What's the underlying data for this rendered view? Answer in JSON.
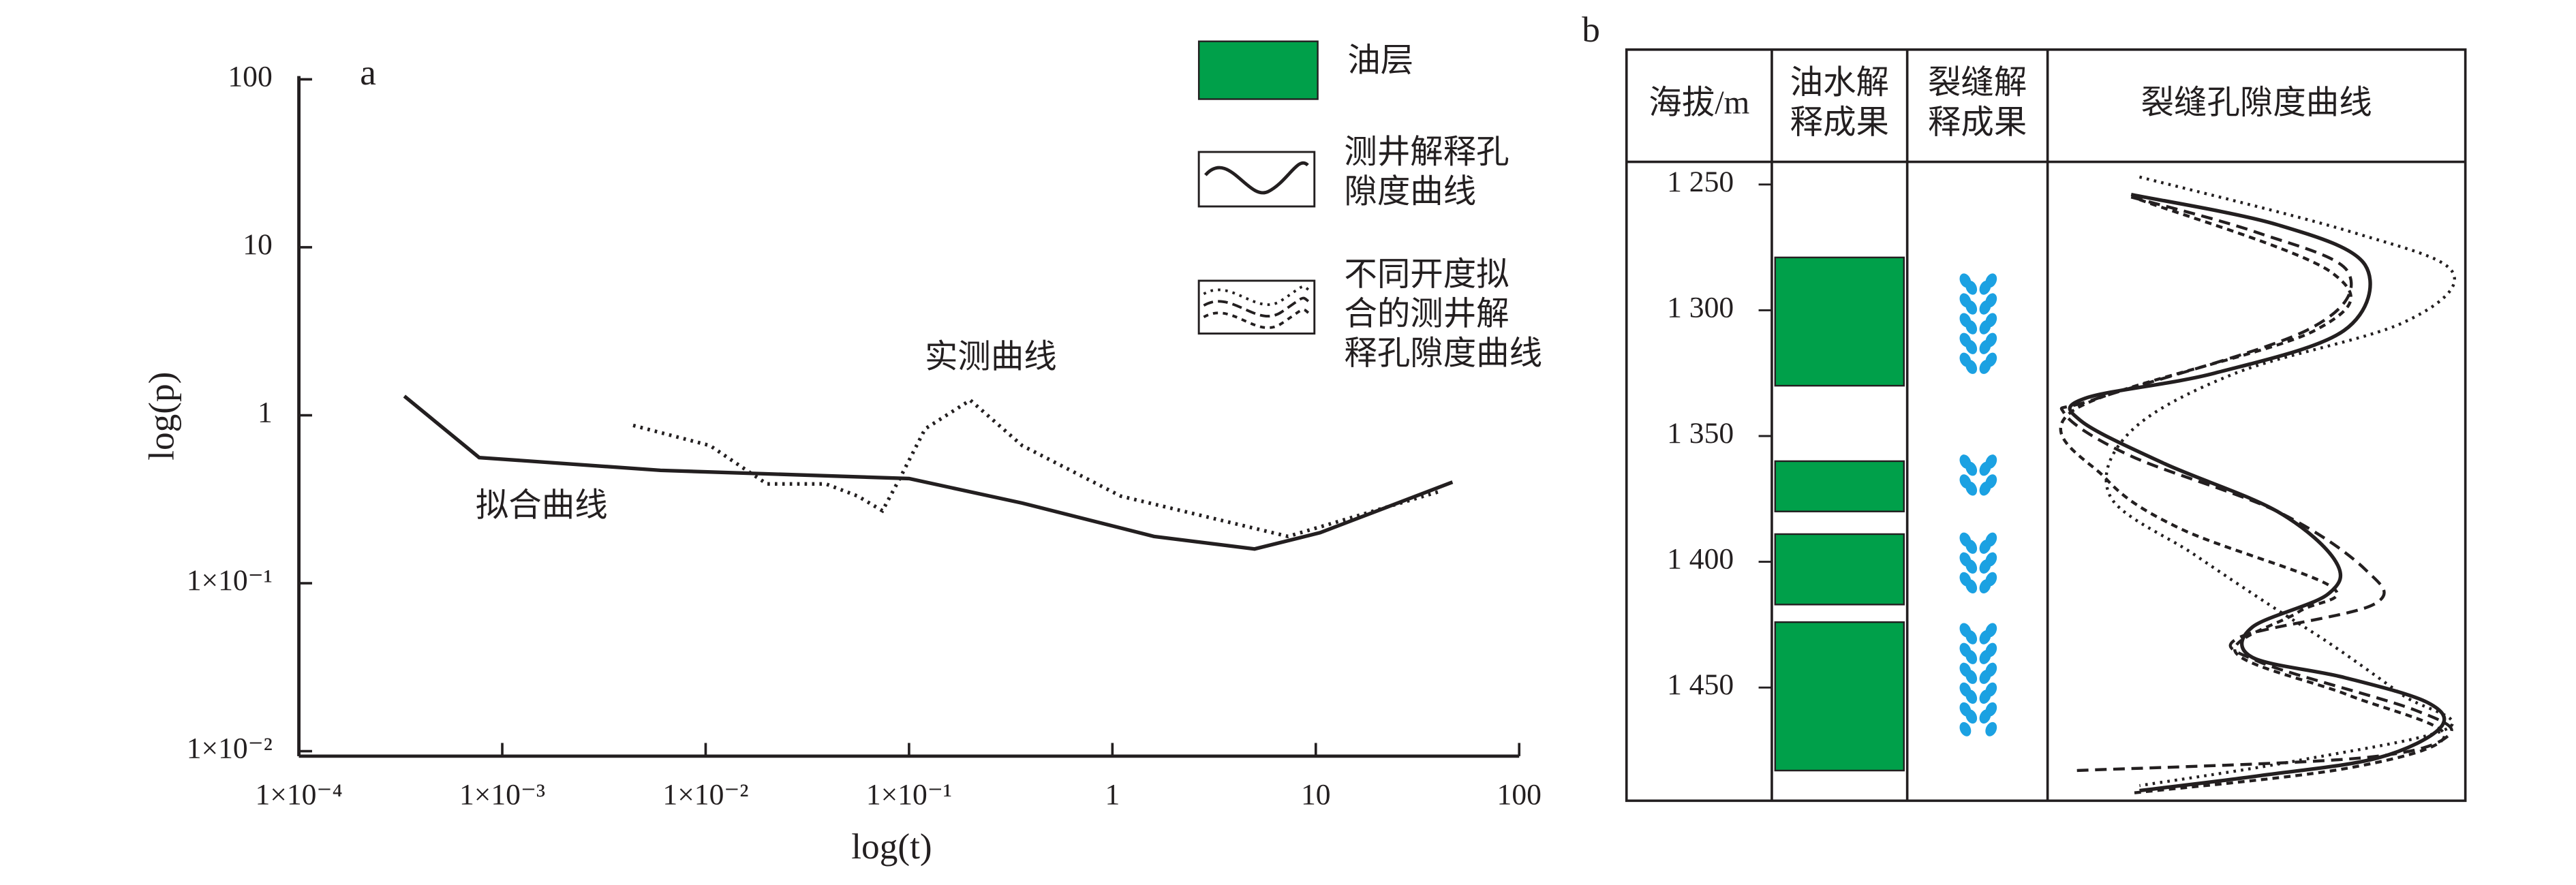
{
  "chart_data": [
    {
      "type": "line",
      "label": "a",
      "xlabel": "log(t)",
      "ylabel": "log(p)",
      "log_x": true,
      "log_y": true,
      "xlim": [
        0.0001,
        100
      ],
      "ylim": [
        0.01,
        100
      ],
      "xticks": [
        {
          "value": 0.0001,
          "label": "1×10⁻⁴"
        },
        {
          "value": 0.001,
          "label": "1×10⁻³"
        },
        {
          "value": 0.01,
          "label": "1×10⁻²"
        },
        {
          "value": 0.1,
          "label": "1×10⁻¹"
        },
        1,
        10,
        100
      ],
      "yticks": [
        {
          "value": 0.01,
          "label": "1×10⁻²"
        },
        {
          "value": 0.1,
          "label": "1×10⁻¹"
        },
        1,
        10,
        100
      ],
      "series": [
        {
          "name": "拟合曲线",
          "style": "solid",
          "color": "#231f20",
          "x": [
            0.00033,
            0.00077,
            0.006,
            0.1,
            0.36,
            1.6,
            5,
            10.5,
            47
          ],
          "values": [
            1.3,
            0.56,
            0.47,
            0.42,
            0.3,
            0.19,
            0.16,
            0.2,
            0.4
          ]
        },
        {
          "name": "实测曲线",
          "style": "dotted",
          "color": "#231f20",
          "x": [
            0.0044,
            0.0105,
            0.02,
            0.039,
            0.056,
            0.074,
            0.09,
            0.12,
            0.2,
            0.36,
            1.1,
            7.3,
            40
          ],
          "values": [
            0.87,
            0.66,
            0.39,
            0.39,
            0.33,
            0.27,
            0.42,
            0.83,
            1.23,
            0.66,
            0.33,
            0.19,
            0.35
          ]
        }
      ]
    },
    {
      "type": "well-log",
      "label": "b",
      "headers": [
        [
          "海拔/m"
        ],
        [
          "油水解",
          "释成果"
        ],
        [
          "裂缝解",
          "释成果"
        ],
        [
          "裂缝孔隙度曲线"
        ]
      ],
      "ylim": [
        1241,
        1495
      ],
      "yticks": [
        {
          "value": 1250,
          "label": "1 250"
        },
        {
          "value": 1300,
          "label": "1 300"
        },
        {
          "value": 1350,
          "label": "1 350"
        },
        {
          "value": 1400,
          "label": "1 400"
        },
        {
          "value": 1450,
          "label": "1 450"
        }
      ],
      "oil_color": "#00a04a",
      "oil_layers": [
        [
          1279,
          1330
        ],
        [
          1360,
          1380
        ],
        [
          1389,
          1417
        ],
        [
          1424,
          1483
        ]
      ],
      "fracture_color": "#1ba1e2",
      "fractures": [
        [
          1285,
          1326
        ],
        [
          1357,
          1377
        ],
        [
          1388,
          1413
        ],
        [
          1424,
          1470
        ]
      ],
      "xlim": [
        0,
        1
      ],
      "series": [
        {
          "style": "solid",
          "color": "#231f20",
          "depth": [
            1254,
            1266,
            1282,
            1308,
            1325,
            1335,
            1344,
            1361,
            1380,
            1400,
            1413,
            1426,
            1438,
            1446,
            1456,
            1466,
            1478,
            1485,
            1491
          ],
          "values": [
            0.2,
            0.55,
            0.76,
            0.71,
            0.4,
            0.09,
            0.08,
            0.28,
            0.55,
            0.69,
            0.67,
            0.49,
            0.49,
            0.71,
            0.91,
            0.94,
            0.79,
            0.51,
            0.22
          ]
        },
        {
          "style": "dashed",
          "color": "#231f20",
          "depth": [
            1255,
            1269,
            1285,
            1308,
            1335,
            1341,
            1358,
            1380,
            1403,
            1417,
            1430,
            1440,
            1459,
            1469,
            1478,
            1483
          ],
          "values": [
            0.2,
            0.5,
            0.72,
            0.62,
            0.12,
            0.04,
            0.2,
            0.55,
            0.76,
            0.78,
            0.46,
            0.51,
            0.88,
            0.96,
            0.75,
            0.07
          ]
        },
        {
          "style": "short-dashed",
          "color": "#231f20",
          "depth": [
            1256,
            1285,
            1308,
            1340,
            1367,
            1387,
            1410,
            1420,
            1436,
            1453,
            1469,
            1482,
            1492
          ],
          "values": [
            0.22,
            0.68,
            0.64,
            0.06,
            0.14,
            0.32,
            0.68,
            0.6,
            0.45,
            0.72,
            0.95,
            0.72,
            0.2
          ]
        },
        {
          "style": "dotted",
          "color": "#231f20",
          "depth": [
            1247,
            1269,
            1285,
            1305,
            1325,
            1348,
            1374,
            1397,
            1417,
            1433,
            1453,
            1466,
            1479,
            1489
          ],
          "values": [
            0.22,
            0.73,
            0.97,
            0.85,
            0.45,
            0.2,
            0.15,
            0.35,
            0.53,
            0.68,
            0.85,
            0.96,
            0.6,
            0.22
          ]
        }
      ]
    }
  ],
  "legend": [
    {
      "kind": "fill",
      "color": "#00a04a",
      "lines": [
        "油层"
      ]
    },
    {
      "kind": "solid",
      "lines": [
        "测井解释孔",
        "隙度曲线"
      ]
    },
    {
      "kind": "multi",
      "lines": [
        "不同开度拟",
        "合的测井解",
        "释孔隙度曲线"
      ]
    }
  ]
}
